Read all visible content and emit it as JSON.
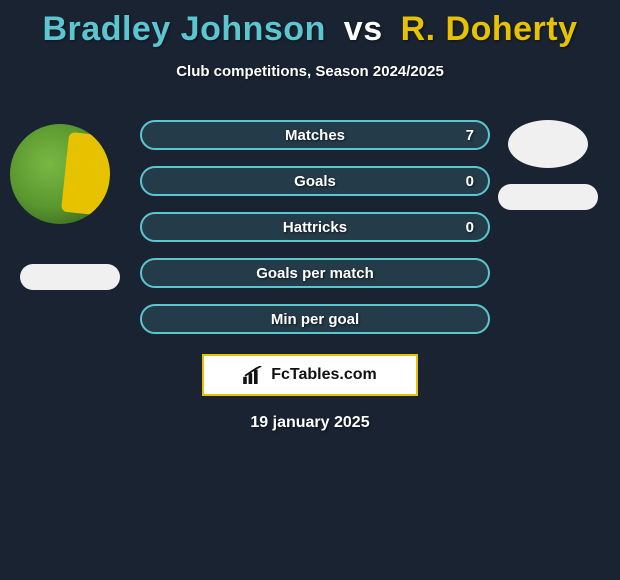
{
  "title": {
    "player1": "Bradley Johnson",
    "vs": "vs",
    "player2": "R. Doherty",
    "color_p1": "#5cc6d0",
    "color_vs": "#ffffff",
    "color_p2": "#e6c200"
  },
  "subtitle": "Club competitions, Season 2024/2025",
  "bars": {
    "border_color_p1": "#5cc6d0",
    "fill_color": "rgba(92,198,208,0.15)",
    "items": [
      {
        "label": "Matches",
        "value_p1": "7"
      },
      {
        "label": "Goals",
        "value_p1": "0"
      },
      {
        "label": "Hattricks",
        "value_p1": "0"
      },
      {
        "label": "Goals per match",
        "value_p1": ""
      },
      {
        "label": "Min per goal",
        "value_p1": ""
      }
    ]
  },
  "brand": "FcTables.com",
  "brand_border": "#e6c200",
  "date": "19 january 2025",
  "background_color": "#1a2332"
}
